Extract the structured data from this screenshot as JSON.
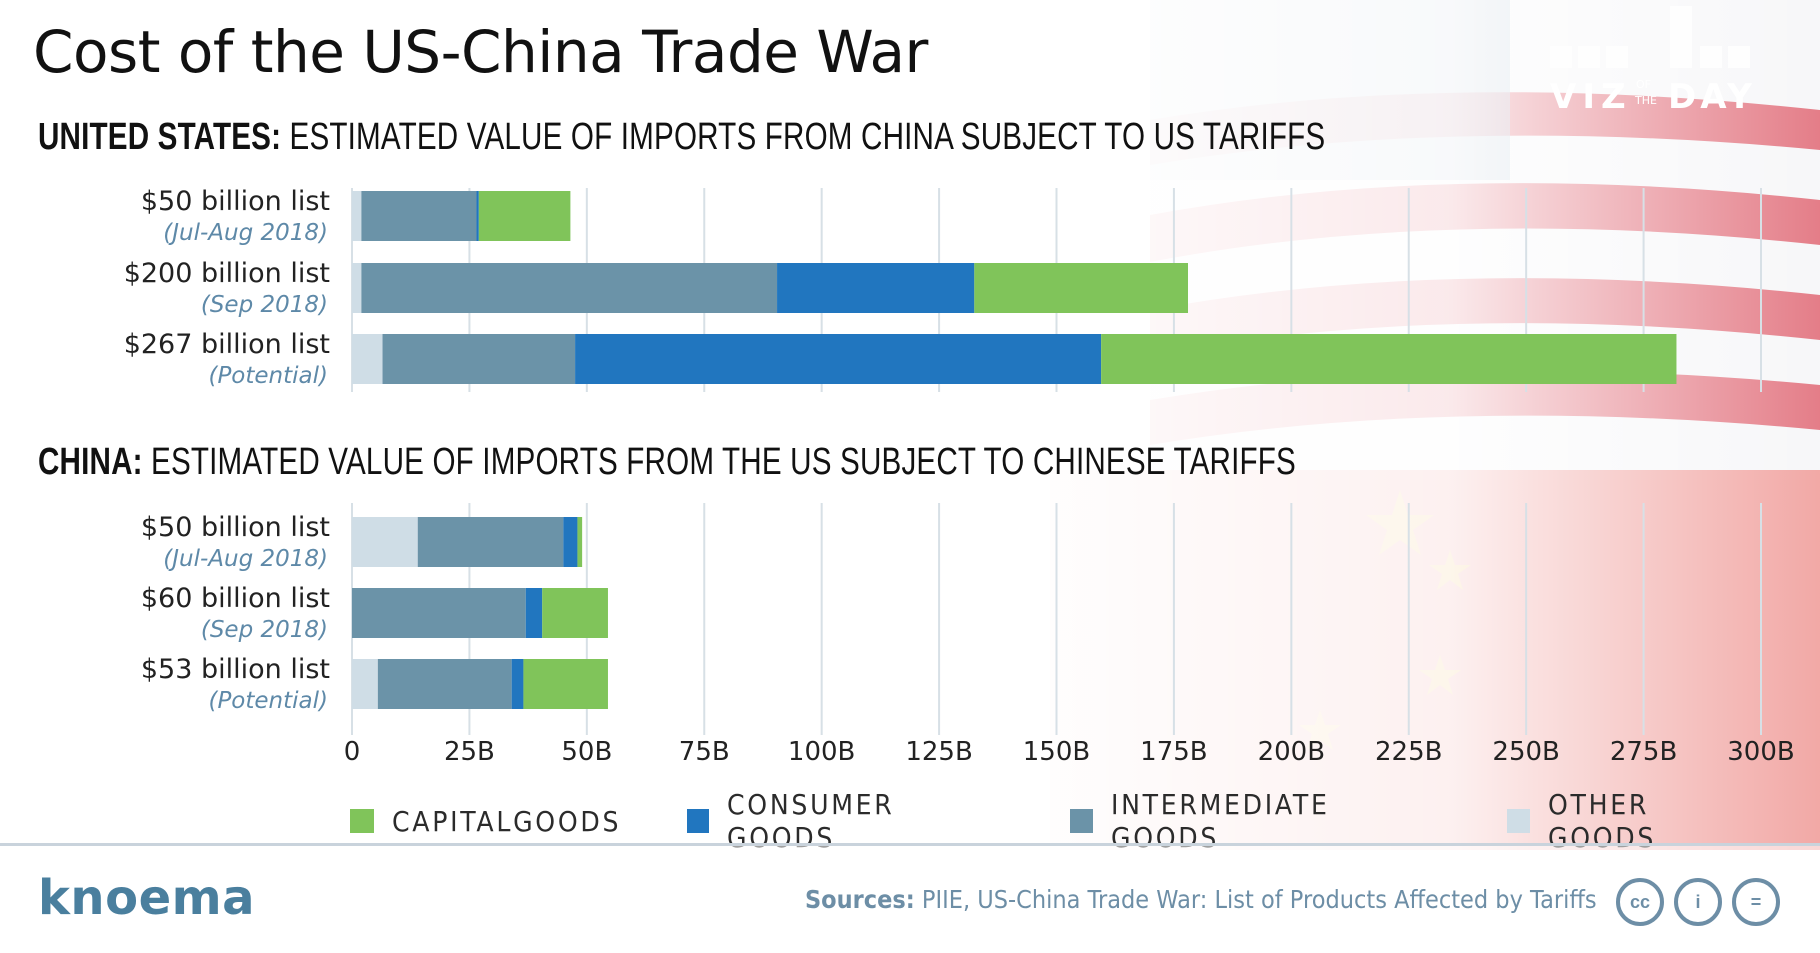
{
  "title": "Cost of the US-China Trade War",
  "logo": {
    "word1": "VIZ",
    "of": "OF",
    "the": "THE",
    "word2": "DAY"
  },
  "sections": [
    {
      "bold": "UNITED STATES:",
      "rest": " ESTIMATED VALUE OF IMPORTS FROM CHINA SUBJECT TO US TARIFFS"
    },
    {
      "bold": "CHINA:",
      "rest": " ESTIMATED VALUE OF IMPORTS FROM THE US SUBJECT TO CHINESE TARIFFS"
    }
  ],
  "colors": {
    "capital": "#80c45a",
    "consumer": "#2176bf",
    "intermediate": "#6b93a8",
    "other": "#cfdde6",
    "brand": "#4a7f9e"
  },
  "chart_data": {
    "type": "bar",
    "orientation": "horizontal",
    "stacked": true,
    "xlim": [
      0,
      300
    ],
    "xticks": [
      "0",
      "25B",
      "50B",
      "75B",
      "100B",
      "125B",
      "150B",
      "175B",
      "200B",
      "225B",
      "250B",
      "275B",
      "300B"
    ],
    "series_names": [
      "OTHER GOODS",
      "INTERMEDIATE GOODS",
      "CONSUMER GOODS",
      "CAPITALGOODS"
    ],
    "groups": [
      {
        "name": "UNITED STATES",
        "bars": [
          {
            "label": "$50 billion list",
            "sub": "(Jul-Aug 2018)",
            "values": [
              2,
              24.5,
              0.5,
              19.5
            ]
          },
          {
            "label": "$200 billion list",
            "sub": "(Sep 2018)",
            "values": [
              2,
              88.5,
              42,
              45.5
            ]
          },
          {
            "label": "$267 billion list",
            "sub": "(Potential)",
            "values": [
              6.5,
              41,
              112,
              122.5
            ]
          }
        ]
      },
      {
        "name": "CHINA",
        "bars": [
          {
            "label": "$50 billion list",
            "sub": "(Jul-Aug 2018)",
            "values": [
              14,
              31,
              3,
              1
            ]
          },
          {
            "label": "$60 billion list",
            "sub": "(Sep 2018)",
            "values": [
              0,
              37,
              3.5,
              14
            ]
          },
          {
            "label": "$53 billion list",
            "sub": "(Potential)",
            "values": [
              5.5,
              28.5,
              2.5,
              18
            ]
          }
        ]
      }
    ]
  },
  "legend": [
    {
      "label": "CAPITALGOODS",
      "color": "#80c45a"
    },
    {
      "label": "CONSUMER GOODS",
      "color": "#2176bf"
    },
    {
      "label": "INTERMEDIATE GOODS",
      "color": "#6b93a8"
    },
    {
      "label": "OTHER GOODS",
      "color": "#cfdde6"
    }
  ],
  "footer": {
    "brand": "knoema",
    "sources_label": "Sources:",
    "sources_text": " PIIE, US-China Trade War: List of Products Affected by Tariffs",
    "icons": [
      "cc",
      "i",
      "="
    ]
  }
}
